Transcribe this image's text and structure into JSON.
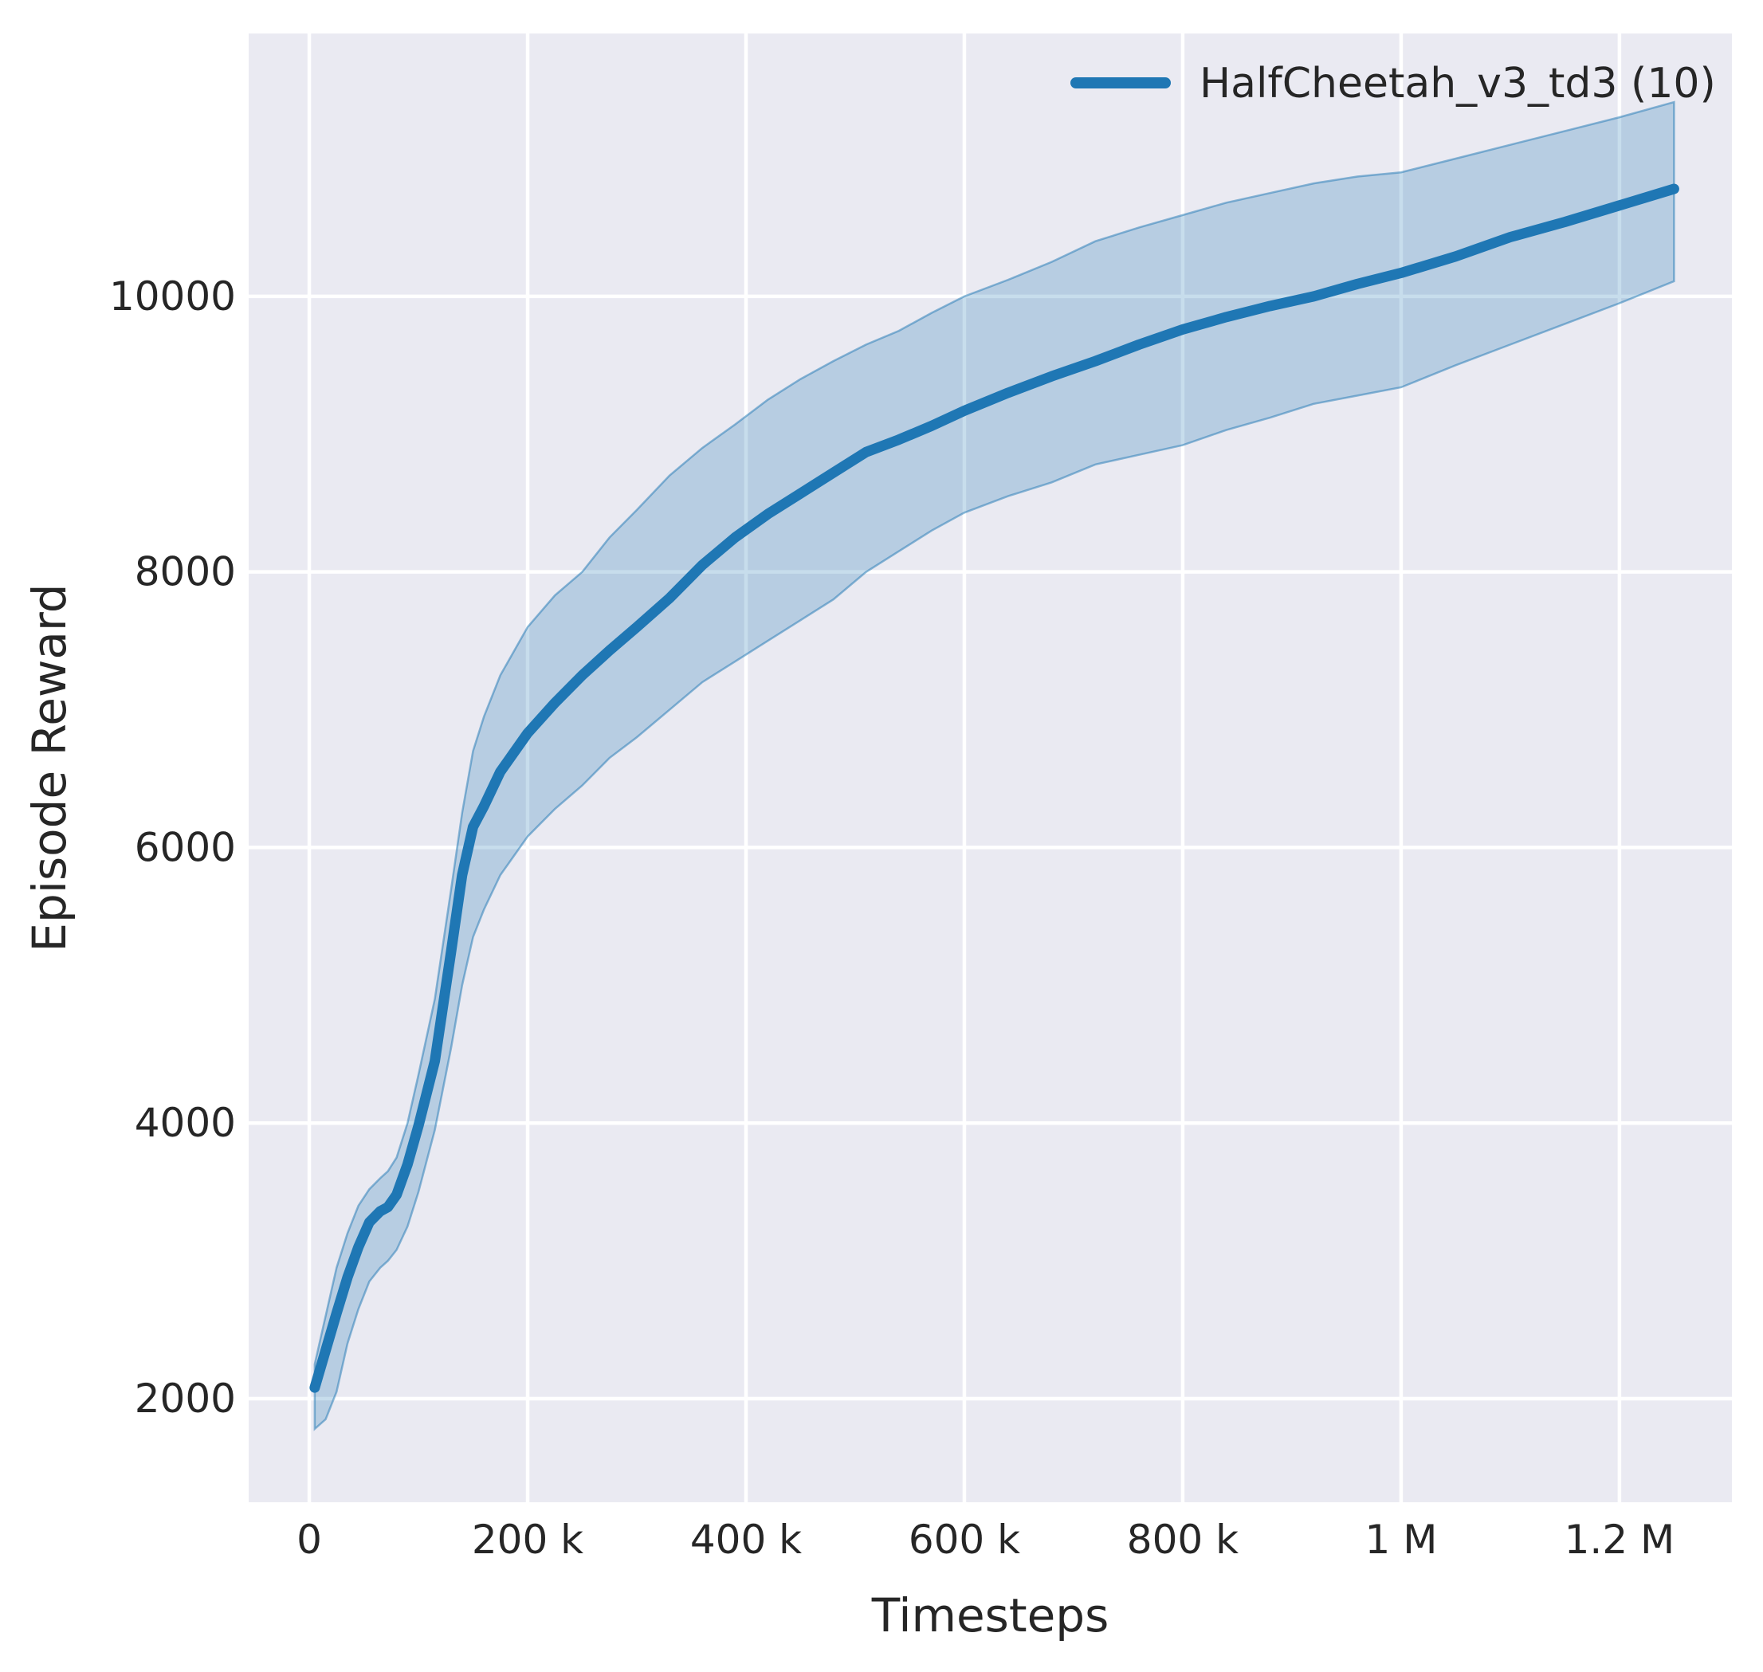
{
  "figure": {
    "kind": "matplotlib-seaborn-darkgrid line chart with confidence band",
    "background_color": "#ffffff",
    "axes_facecolor": "#eaeaf2",
    "gridline_color": "#ffffff",
    "text_color": "#262626"
  },
  "legend": {
    "label": "HalfCheetah_v3_td3 (10)",
    "swatch_color": "#1f77b4",
    "position": "upper right"
  },
  "chart_data": {
    "type": "line",
    "title": "",
    "xlabel": "Timesteps",
    "ylabel": "Episode Reward",
    "grid": true,
    "legend_position": "upper right",
    "xlim": [
      -55500,
      1303000
    ],
    "ylim": [
      1248,
      11908
    ],
    "x_ticks": {
      "values": [
        0,
        200000,
        400000,
        600000,
        800000,
        1000000,
        1200000
      ],
      "labels": [
        "0",
        "200 k",
        "400 k",
        "600 k",
        "800 k",
        "1 M",
        "1.2 M"
      ]
    },
    "y_ticks": {
      "values": [
        2000,
        4000,
        6000,
        8000,
        10000
      ],
      "labels": [
        "2000",
        "4000",
        "6000",
        "8000",
        "10000"
      ]
    },
    "series": [
      {
        "name": "HalfCheetah_v3_td3 (10)",
        "color": "#1f77b4",
        "band_fill_opacity": 0.25,
        "band_edge_opacity": 0.5,
        "x": [
          5000,
          15000,
          25000,
          35000,
          45000,
          55000,
          65000,
          72000,
          80000,
          90000,
          100000,
          115000,
          130000,
          140000,
          150000,
          160000,
          175000,
          200000,
          225000,
          250000,
          275000,
          300000,
          330000,
          360000,
          390000,
          420000,
          450000,
          480000,
          510000,
          540000,
          570000,
          600000,
          640000,
          680000,
          720000,
          760000,
          800000,
          840000,
          880000,
          920000,
          960000,
          1000000,
          1050000,
          1100000,
          1150000,
          1200000,
          1250000
        ],
        "mean": [
          2080,
          2350,
          2620,
          2880,
          3100,
          3280,
          3360,
          3390,
          3480,
          3700,
          3980,
          4450,
          5250,
          5800,
          6150,
          6300,
          6550,
          6830,
          7050,
          7250,
          7430,
          7600,
          7810,
          8050,
          8250,
          8420,
          8570,
          8720,
          8870,
          8960,
          9060,
          9170,
          9300,
          9420,
          9530,
          9650,
          9760,
          9850,
          9930,
          10000,
          10090,
          10170,
          10290,
          10430,
          10540,
          10660,
          10780
        ],
        "lower": [
          1780,
          1850,
          2050,
          2400,
          2650,
          2850,
          2950,
          3000,
          3080,
          3250,
          3500,
          3950,
          4550,
          5000,
          5350,
          5550,
          5800,
          6080,
          6280,
          6450,
          6650,
          6800,
          7000,
          7200,
          7350,
          7500,
          7650,
          7800,
          8000,
          8150,
          8300,
          8430,
          8550,
          8650,
          8780,
          8850,
          8920,
          9030,
          9120,
          9220,
          9280,
          9340,
          9500,
          9650,
          9800,
          9950,
          10110
        ],
        "upper": [
          2250,
          2600,
          2950,
          3200,
          3400,
          3520,
          3600,
          3650,
          3750,
          4000,
          4350,
          4900,
          5700,
          6250,
          6700,
          6950,
          7250,
          7600,
          7830,
          8000,
          8250,
          8450,
          8700,
          8900,
          9070,
          9250,
          9400,
          9530,
          9650,
          9750,
          9880,
          10000,
          10120,
          10250,
          10400,
          10500,
          10590,
          10680,
          10750,
          10820,
          10870,
          10900,
          11000,
          11100,
          11200,
          11300,
          11410
        ]
      }
    ]
  }
}
